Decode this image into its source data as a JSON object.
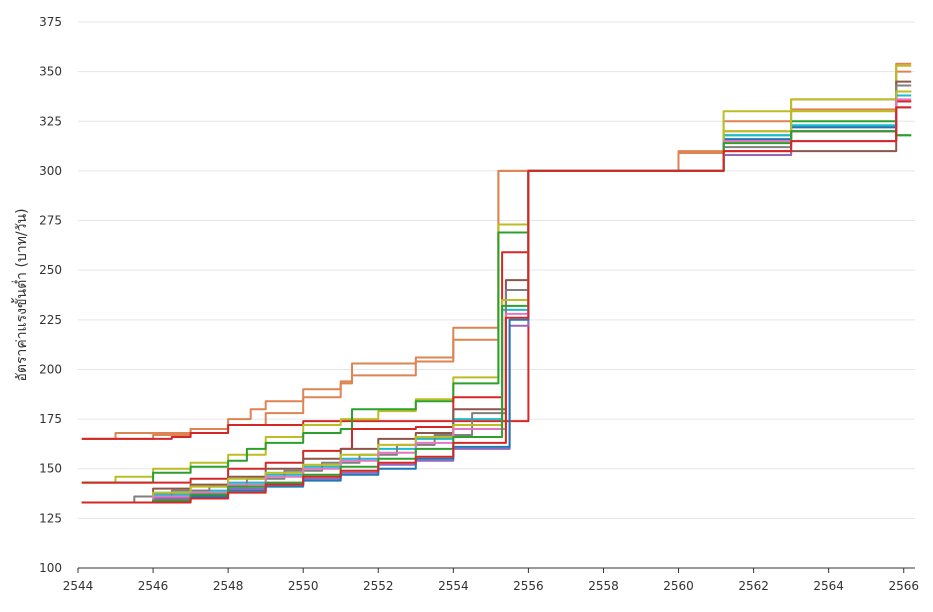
{
  "chart_data": {
    "type": "line",
    "title": "",
    "xlabel": "",
    "ylabel": "อัตราค่าแรงขั้นต่ำ (บาท/วัน)",
    "xlim": [
      2544,
      2566.3
    ],
    "ylim": [
      100,
      375
    ],
    "x_ticks": [
      2544,
      2546,
      2548,
      2550,
      2552,
      2554,
      2556,
      2558,
      2560,
      2562,
      2564,
      2566
    ],
    "y_ticks": [
      100,
      125,
      150,
      175,
      200,
      225,
      250,
      275,
      300,
      325,
      350,
      375
    ],
    "grid": "horizontal",
    "legend": "none",
    "step_style": "steps-post",
    "series": [
      {
        "color": "#dd8452",
        "x": [
          2544.1,
          2545.0,
          2546.0,
          2547.0,
          2548.0,
          2548.6,
          2549.0,
          2550.0,
          2551.0,
          2551.3,
          2552.0,
          2553.0,
          2554.0,
          2555.2,
          2556.0,
          2560.0,
          2561.2,
          2563.0,
          2565.8
        ],
        "y": [
          165,
          168,
          168,
          170,
          175,
          180,
          184,
          190,
          194,
          203,
          203,
          206,
          215,
          300,
          300,
          310,
          325,
          336,
          354
        ]
      },
      {
        "color": "#dd8452",
        "x": [
          2544.1,
          2546.0,
          2547.0,
          2548.0,
          2549.0,
          2550.0,
          2551.0,
          2551.3,
          2552.0,
          2553.0,
          2554.0,
          2555.2,
          2556.0,
          2560.0,
          2561.2,
          2563.0,
          2565.8
        ],
        "y": [
          165,
          167,
          170,
          172,
          178,
          186,
          193,
          197,
          197,
          204,
          221,
          300,
          300,
          309,
          320,
          331,
          350
        ]
      },
      {
        "color": "#d62728",
        "x": [
          2544.1,
          2546.0,
          2546.5,
          2547.0,
          2548.0,
          2550.0,
          2556.0,
          2560.0,
          2561.2,
          2563.0,
          2565.8
        ],
        "y": [
          165,
          165,
          166,
          168,
          172,
          174,
          300,
          300,
          310,
          320,
          335
        ]
      },
      {
        "color": "#bcbd22",
        "x": [
          2544.1,
          2545.0,
          2546.0,
          2547.0,
          2548.0,
          2549.0,
          2550.0,
          2551.0,
          2552.0,
          2553.0,
          2554.0,
          2555.2,
          2556.0,
          2560.0,
          2561.2,
          2563.0,
          2565.8
        ],
        "y": [
          143,
          146,
          150,
          153,
          157,
          166,
          172,
          175,
          179,
          185,
          196,
          273,
          300,
          300,
          330,
          336,
          353
        ]
      },
      {
        "color": "#2ca02c",
        "x": [
          2544.1,
          2546.0,
          2547.0,
          2548.0,
          2548.5,
          2549.0,
          2550.0,
          2551.0,
          2551.3,
          2552.0,
          2553.0,
          2554.0,
          2555.2,
          2556.0,
          2560.0,
          2561.2,
          2563.0,
          2565.8
        ],
        "y": [
          143,
          148,
          151,
          154,
          160,
          163,
          168,
          170,
          180,
          180,
          184,
          193,
          269,
          300,
          300,
          318,
          325,
          318
        ]
      },
      {
        "color": "#d62728",
        "x": [
          2544.1,
          2545.0,
          2546.0,
          2547.0,
          2548.0,
          2549.0,
          2550.0,
          2551.0,
          2551.3,
          2552.0,
          2553.0,
          2554.0,
          2555.3,
          2556.0,
          2560.0,
          2561.2,
          2563.0,
          2565.8
        ],
        "y": [
          143,
          143,
          143,
          145,
          150,
          153,
          159,
          160,
          170,
          170,
          171,
          186,
          259,
          300,
          300,
          315,
          320,
          335
        ]
      },
      {
        "color": "#17becf",
        "x": [
          2544.1,
          2546.0,
          2547.0,
          2548.0,
          2549.0,
          2550.0,
          2551.0,
          2552.0,
          2553.0,
          2554.0,
          2555.3,
          2556.0,
          2560.0,
          2561.2,
          2563.0,
          2565.8
        ],
        "y": [
          133,
          137,
          139,
          143,
          147,
          151,
          155,
          160,
          165,
          175,
          230,
          300,
          300,
          318,
          323,
          338
        ]
      },
      {
        "color": "#8c564b",
        "x": [
          2544.1,
          2546.0,
          2547.0,
          2548.0,
          2549.0,
          2550.0,
          2551.0,
          2552.0,
          2553.0,
          2554.0,
          2555.4,
          2556.0,
          2560.0,
          2561.2,
          2563.0,
          2565.8
        ],
        "y": [
          133,
          140,
          142,
          146,
          150,
          155,
          160,
          165,
          168,
          180,
          245,
          300,
          300,
          308,
          310,
          345
        ]
      },
      {
        "color": "#7f7f7f",
        "x": [
          2544.1,
          2545.5,
          2546.5,
          2547.5,
          2548.5,
          2549.5,
          2550.5,
          2551.5,
          2552.5,
          2553.5,
          2554.5,
          2555.4,
          2556.0,
          2560.0,
          2561.2,
          2563.0,
          2565.8
        ],
        "y": [
          133,
          136,
          139,
          141,
          145,
          149,
          153,
          157,
          162,
          167,
          178,
          240,
          300,
          300,
          312,
          322,
          343
        ]
      },
      {
        "color": "#9467bd",
        "x": [
          2544.1,
          2546.0,
          2547.0,
          2548.0,
          2549.0,
          2550.0,
          2551.0,
          2552.0,
          2553.0,
          2554.0,
          2555.5,
          2556.0,
          2560.0,
          2561.2,
          2563.0,
          2565.8
        ],
        "y": [
          133,
          135,
          137,
          140,
          142,
          145,
          148,
          152,
          154,
          160,
          222,
          300,
          300,
          308,
          315,
          332
        ]
      },
      {
        "color": "#1f77b4",
        "x": [
          2544.1,
          2546.0,
          2547.0,
          2548.0,
          2549.0,
          2550.0,
          2551.0,
          2552.0,
          2553.0,
          2554.0,
          2555.5,
          2556.0,
          2560.0,
          2561.2,
          2563.0,
          2565.8
        ],
        "y": [
          133,
          134,
          136,
          139,
          141,
          144,
          147,
          150,
          155,
          161,
          225,
          300,
          300,
          316,
          322,
          340
        ]
      },
      {
        "color": "#bcbd22",
        "x": [
          2544.1,
          2546.0,
          2547.0,
          2548.0,
          2549.0,
          2550.0,
          2551.0,
          2552.0,
          2553.0,
          2554.0,
          2555.3,
          2556.0,
          2560.0,
          2561.2,
          2563.0,
          2565.8
        ],
        "y": [
          133,
          138,
          141,
          145,
          148,
          152,
          157,
          162,
          166,
          172,
          235,
          300,
          300,
          320,
          330,
          340
        ]
      },
      {
        "color": "#e377c2",
        "x": [
          2544.1,
          2546.0,
          2547.0,
          2548.0,
          2549.0,
          2550.0,
          2551.0,
          2552.0,
          2553.0,
          2554.0,
          2555.4,
          2556.0,
          2560.0,
          2561.2,
          2563.0,
          2565.8
        ],
        "y": [
          133,
          136,
          138,
          142,
          146,
          150,
          154,
          158,
          163,
          170,
          228,
          300,
          300,
          315,
          320,
          336
        ]
      },
      {
        "color": "#2ca02c",
        "x": [
          2544.1,
          2546.0,
          2547.0,
          2548.0,
          2549.0,
          2550.0,
          2551.0,
          2552.0,
          2553.0,
          2554.0,
          2555.3,
          2556.0,
          2560.0,
          2561.2,
          2563.0,
          2565.8
        ],
        "y": [
          133,
          134,
          137,
          141,
          143,
          147,
          151,
          155,
          160,
          166,
          232,
          300,
          300,
          314,
          320,
          318
        ]
      },
      {
        "color": "#d62728",
        "x": [
          2544.1,
          2546.0,
          2547.0,
          2548.0,
          2549.0,
          2550.0,
          2551.0,
          2552.0,
          2553.0,
          2554.0,
          2555.4,
          2556.0,
          2560.0,
          2561.2,
          2563.0,
          2565.8
        ],
        "y": [
          133,
          133,
          135,
          138,
          142,
          146,
          149,
          153,
          156,
          163,
          226,
          300,
          300,
          310,
          315,
          332
        ]
      }
    ]
  }
}
